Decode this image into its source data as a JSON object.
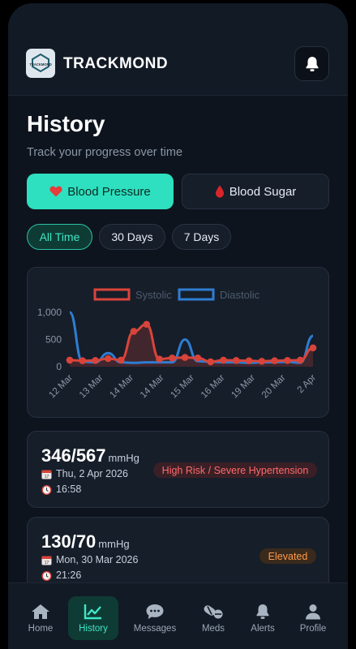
{
  "app": {
    "brand": "TRACKMOND",
    "logo_text": "TRACKMOND"
  },
  "page": {
    "title": "History",
    "subtitle": "Track your progress over time"
  },
  "metric_tabs": [
    {
      "label": "Blood Pressure",
      "icon": "heart-icon",
      "active": true
    },
    {
      "label": "Blood Sugar",
      "icon": "drop-icon",
      "active": false
    }
  ],
  "range_filters": [
    {
      "label": "All Time",
      "active": true
    },
    {
      "label": "30 Days",
      "active": false
    },
    {
      "label": "7 Days",
      "active": false
    }
  ],
  "chart_data": {
    "type": "line",
    "x": [
      "12 Mar",
      "12 Mar",
      "13 Mar",
      "13 Mar",
      "13 Mar",
      "14 Mar",
      "14 Mar",
      "14 Mar",
      "14 Mar",
      "15 Mar",
      "15 Mar",
      "15 Mar",
      "16 Mar",
      "16 Mar",
      "16 Mar",
      "19 Mar",
      "19 Mar",
      "20 Mar",
      "20 Mar",
      "2 Apr"
    ],
    "tick_labels": [
      "12 Mar",
      "13 Mar",
      "14 Mar",
      "14 Mar",
      "15 Mar",
      "16 Mar",
      "19 Mar",
      "20 Mar",
      "2 Apr"
    ],
    "series": [
      {
        "name": "Systolic",
        "color": "#d9443a",
        "values": [
          120,
          110,
          115,
          150,
          120,
          650,
          780,
          140,
          160,
          170,
          160,
          90,
          120,
          115,
          110,
          100,
          110,
          115,
          120,
          346
        ]
      },
      {
        "name": "Diastolic",
        "color": "#2f7dd1",
        "values": [
          1000,
          90,
          80,
          250,
          80,
          70,
          80,
          80,
          80,
          500,
          100,
          90,
          80,
          80,
          70,
          80,
          80,
          90,
          70,
          567
        ]
      }
    ],
    "ylim": [
      0,
      1000
    ],
    "yticks": [
      "0",
      "500",
      "1,000"
    ],
    "legend": "top",
    "grid": false
  },
  "readings": [
    {
      "value": "346/567",
      "unit": "mmHg",
      "date": "Thu, 2 Apr 2026",
      "time": "16:58",
      "status": "High Risk / Severe Hypertension",
      "status_color": "#ff6b6b"
    },
    {
      "value": "130/70",
      "unit": "mmHg",
      "date": "Mon, 30 Mar 2026",
      "time": "21:26",
      "status": "Elevated",
      "status_color": "#ff9a4a"
    }
  ],
  "nav": [
    {
      "label": "Home",
      "icon": "home-icon",
      "active": false
    },
    {
      "label": "History",
      "icon": "chart-icon",
      "active": true
    },
    {
      "label": "Messages",
      "icon": "chat-icon",
      "active": false
    },
    {
      "label": "Meds",
      "icon": "pills-icon",
      "active": false
    },
    {
      "label": "Alerts",
      "icon": "bell-icon",
      "active": false
    },
    {
      "label": "Profile",
      "icon": "person-icon",
      "active": false
    }
  ]
}
